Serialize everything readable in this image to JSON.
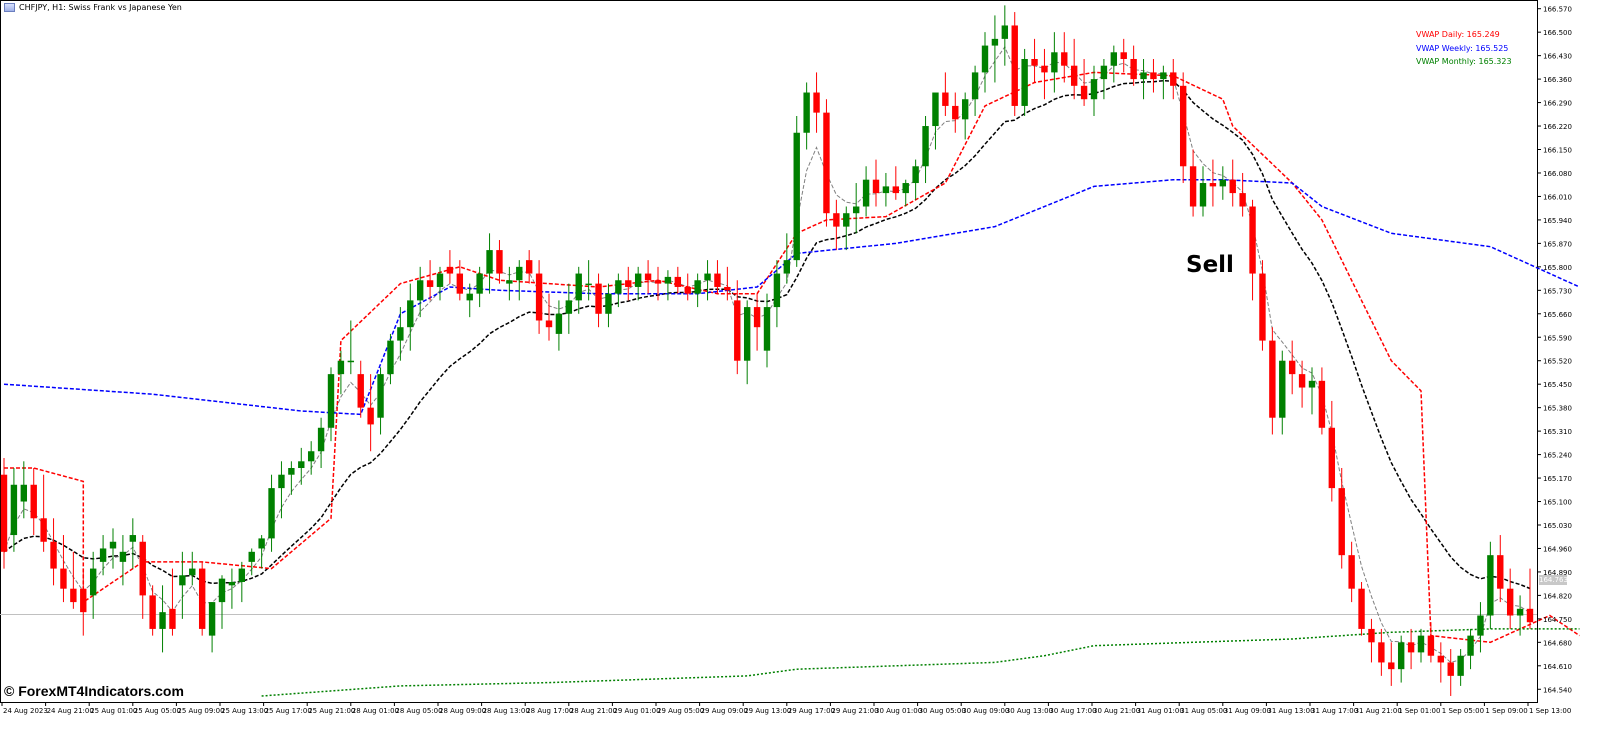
{
  "header": {
    "title": "CHFJPY, H1:  Swiss Frank vs Japanese Yen"
  },
  "legend": {
    "daily": "VWAP Daily: 165.249",
    "weekly": "VWAP Weekly: 165.525",
    "monthly": "VWAP Monthly: 165.323"
  },
  "annotation": {
    "sell": "Sell"
  },
  "watermark": "© ForexMT4Indicators.com",
  "current_price_label": "164.763",
  "colors": {
    "bull": "#008000",
    "bear": "#ff0000",
    "daily": "#ff0000",
    "weekly": "#0000ff",
    "monthly": "#008000",
    "black_ma": "#000000",
    "grey_ma": "#808080"
  },
  "chart_data": {
    "type": "candlestick",
    "symbol": "CHFJPY",
    "timeframe": "H1",
    "ylim": [
      164.505,
      166.59
    ],
    "y_ticks": [
      "166.570",
      "166.500",
      "166.430",
      "166.360",
      "166.290",
      "166.220",
      "166.150",
      "166.080",
      "166.010",
      "165.940",
      "165.870",
      "165.800",
      "165.730",
      "165.660",
      "165.590",
      "165.520",
      "165.450",
      "165.380",
      "165.310",
      "165.240",
      "165.170",
      "165.100",
      "165.030",
      "164.960",
      "164.890",
      "164.820",
      "164.750",
      "164.680",
      "164.610",
      "164.540"
    ],
    "x_ticks": [
      "24 Aug 2023",
      "24 Aug 21:00",
      "25 Aug 01:00",
      "25 Aug 05:00",
      "25 Aug 09:00",
      "25 Aug 13:00",
      "25 Aug 17:00",
      "25 Aug 21:00",
      "28 Aug 01:00",
      "28 Aug 05:00",
      "28 Aug 09:00",
      "28 Aug 13:00",
      "28 Aug 17:00",
      "28 Aug 21:00",
      "29 Aug 01:00",
      "29 Aug 05:00",
      "29 Aug 09:00",
      "29 Aug 13:00",
      "29 Aug 17:00",
      "29 Aug 21:00",
      "30 Aug 01:00",
      "30 Aug 05:00",
      "30 Aug 09:00",
      "30 Aug 13:00",
      "30 Aug 17:00",
      "30 Aug 21:00",
      "31 Aug 01:00",
      "31 Aug 05:00",
      "31 Aug 09:00",
      "31 Aug 13:00",
      "31 Aug 17:00",
      "31 Aug 21:00",
      "1 Sep 01:00",
      "1 Sep 05:00",
      "1 Sep 09:00",
      "1 Sep 13:00"
    ],
    "current_price": 164.763,
    "candles": [
      [
        165.18,
        165.23,
        164.9,
        164.95
      ],
      [
        165.0,
        165.2,
        164.95,
        165.15
      ],
      [
        165.1,
        165.22,
        165.05,
        165.15
      ],
      [
        165.15,
        165.2,
        165.0,
        165.05
      ],
      [
        165.05,
        165.18,
        164.95,
        164.98
      ],
      [
        164.98,
        165.05,
        164.85,
        164.9
      ],
      [
        164.9,
        165.0,
        164.8,
        164.84
      ],
      [
        164.84,
        164.95,
        164.78,
        164.8
      ],
      [
        164.84,
        164.9,
        164.7,
        164.77
      ],
      [
        164.82,
        164.95,
        164.75,
        164.9
      ],
      [
        164.92,
        165.0,
        164.88,
        164.96
      ],
      [
        164.96,
        165.02,
        164.9,
        164.98
      ],
      [
        164.92,
        165.0,
        164.85,
        164.95
      ],
      [
        164.98,
        165.05,
        164.9,
        165.0
      ],
      [
        164.98,
        165.0,
        164.75,
        164.82
      ],
      [
        164.82,
        164.85,
        164.7,
        164.72
      ],
      [
        164.72,
        164.85,
        164.65,
        164.77
      ],
      [
        164.78,
        164.9,
        164.7,
        164.72
      ],
      [
        164.85,
        164.95,
        164.75,
        164.88
      ],
      [
        164.88,
        164.95,
        164.85,
        164.9
      ],
      [
        164.9,
        164.92,
        164.7,
        164.72
      ],
      [
        164.7,
        164.8,
        164.65,
        164.8
      ],
      [
        164.8,
        164.88,
        164.72,
        164.87
      ],
      [
        164.85,
        164.9,
        164.78,
        164.86
      ],
      [
        164.86,
        164.92,
        164.8,
        164.9
      ],
      [
        164.92,
        164.96,
        164.88,
        164.95
      ],
      [
        164.96,
        165.0,
        164.9,
        164.99
      ],
      [
        164.99,
        165.18,
        164.95,
        165.14
      ],
      [
        165.14,
        165.22,
        165.05,
        165.18
      ],
      [
        165.18,
        165.22,
        165.12,
        165.2
      ],
      [
        165.2,
        165.26,
        165.15,
        165.22
      ],
      [
        165.22,
        165.28,
        165.18,
        165.25
      ],
      [
        165.25,
        165.35,
        165.2,
        165.32
      ],
      [
        165.32,
        165.5,
        165.28,
        165.48
      ],
      [
        165.48,
        165.55,
        165.42,
        165.52
      ],
      [
        165.52,
        165.64,
        165.48,
        165.52
      ],
      [
        165.48,
        165.52,
        165.35,
        165.38
      ],
      [
        165.38,
        165.48,
        165.25,
        165.33
      ],
      [
        165.35,
        165.5,
        165.3,
        165.48
      ],
      [
        165.48,
        165.6,
        165.45,
        165.58
      ],
      [
        165.58,
        165.68,
        165.52,
        165.62
      ],
      [
        165.62,
        165.75,
        165.55,
        165.7
      ],
      [
        165.7,
        165.8,
        165.65,
        165.76
      ],
      [
        165.76,
        165.82,
        165.7,
        165.74
      ],
      [
        165.74,
        165.8,
        165.7,
        165.78
      ],
      [
        165.8,
        165.85,
        165.75,
        165.78
      ],
      [
        165.78,
        165.82,
        165.7,
        165.72
      ],
      [
        165.7,
        165.75,
        165.65,
        165.72
      ],
      [
        165.72,
        165.8,
        165.68,
        165.78
      ],
      [
        165.78,
        165.9,
        165.72,
        165.85
      ],
      [
        165.85,
        165.88,
        165.75,
        165.78
      ],
      [
        165.75,
        165.8,
        165.7,
        165.76
      ],
      [
        165.76,
        165.82,
        165.7,
        165.8
      ],
      [
        165.82,
        165.85,
        165.75,
        165.78
      ],
      [
        165.78,
        165.82,
        165.6,
        165.64
      ],
      [
        165.64,
        165.72,
        165.58,
        165.62
      ],
      [
        165.6,
        165.7,
        165.55,
        165.66
      ],
      [
        165.66,
        165.75,
        165.6,
        165.7
      ],
      [
        165.7,
        165.8,
        165.66,
        165.78
      ],
      [
        165.75,
        165.82,
        165.7,
        165.75
      ],
      [
        165.75,
        165.78,
        165.62,
        165.66
      ],
      [
        165.66,
        165.75,
        165.62,
        165.72
      ],
      [
        165.72,
        165.78,
        165.68,
        165.76
      ],
      [
        165.76,
        165.8,
        165.7,
        165.74
      ],
      [
        165.74,
        165.8,
        165.7,
        165.78
      ],
      [
        165.78,
        165.82,
        165.72,
        165.76
      ],
      [
        165.76,
        165.8,
        165.7,
        165.75
      ],
      [
        165.75,
        165.79,
        165.7,
        165.77
      ],
      [
        165.77,
        165.8,
        165.72,
        165.74
      ],
      [
        165.74,
        165.78,
        165.7,
        165.72
      ],
      [
        165.72,
        165.78,
        165.68,
        165.76
      ],
      [
        165.76,
        165.82,
        165.7,
        165.78
      ],
      [
        165.78,
        165.82,
        165.72,
        165.74
      ],
      [
        165.74,
        165.8,
        165.7,
        165.73
      ],
      [
        165.7,
        165.76,
        165.48,
        165.52
      ],
      [
        165.52,
        165.7,
        165.45,
        165.68
      ],
      [
        165.68,
        165.72,
        165.55,
        165.62
      ],
      [
        165.55,
        165.72,
        165.5,
        165.68
      ],
      [
        165.68,
        165.82,
        165.62,
        165.78
      ],
      [
        165.78,
        165.9,
        165.75,
        165.82
      ],
      [
        165.82,
        166.25,
        165.8,
        166.2
      ],
      [
        166.2,
        166.35,
        166.15,
        166.32
      ],
      [
        166.32,
        166.38,
        166.2,
        166.26
      ],
      [
        166.26,
        166.3,
        165.92,
        165.96
      ],
      [
        165.96,
        166.0,
        165.85,
        165.92
      ],
      [
        165.92,
        165.98,
        165.85,
        165.96
      ],
      [
        165.96,
        166.05,
        165.9,
        165.98
      ],
      [
        165.98,
        166.1,
        165.95,
        166.06
      ],
      [
        166.06,
        166.12,
        165.98,
        166.02
      ],
      [
        166.02,
        166.08,
        165.98,
        166.04
      ],
      [
        166.04,
        166.1,
        166.0,
        166.02
      ],
      [
        166.02,
        166.06,
        165.98,
        166.05
      ],
      [
        166.05,
        166.12,
        166.0,
        166.1
      ],
      [
        166.1,
        166.25,
        166.05,
        166.22
      ],
      [
        166.22,
        166.3,
        166.15,
        166.32
      ],
      [
        166.32,
        166.38,
        166.25,
        166.28
      ],
      [
        166.28,
        166.32,
        166.2,
        166.24
      ],
      [
        166.24,
        166.32,
        166.18,
        166.3
      ],
      [
        166.3,
        166.4,
        166.25,
        166.38
      ],
      [
        166.38,
        166.5,
        166.32,
        166.46
      ],
      [
        166.46,
        166.55,
        166.35,
        166.48
      ],
      [
        166.48,
        166.58,
        166.4,
        166.52
      ],
      [
        166.52,
        166.56,
        166.25,
        166.28
      ],
      [
        166.28,
        166.45,
        166.25,
        166.42
      ],
      [
        166.42,
        166.48,
        166.35,
        166.4
      ],
      [
        166.4,
        166.45,
        166.3,
        166.38
      ],
      [
        166.38,
        166.5,
        166.32,
        166.44
      ],
      [
        166.44,
        166.5,
        166.35,
        166.4
      ],
      [
        166.4,
        166.48,
        166.3,
        166.34
      ],
      [
        166.34,
        166.42,
        166.28,
        166.3
      ],
      [
        166.3,
        166.4,
        166.25,
        166.36
      ],
      [
        166.36,
        166.42,
        166.3,
        166.4
      ],
      [
        166.4,
        166.46,
        166.35,
        166.44
      ],
      [
        166.44,
        166.48,
        166.38,
        166.42
      ],
      [
        166.42,
        166.46,
        166.34,
        166.36
      ],
      [
        166.36,
        166.42,
        166.3,
        166.38
      ],
      [
        166.38,
        166.42,
        166.32,
        166.36
      ],
      [
        166.36,
        166.4,
        166.3,
        166.38
      ],
      [
        166.38,
        166.42,
        166.3,
        166.34
      ],
      [
        166.34,
        166.38,
        166.05,
        166.1
      ],
      [
        166.1,
        166.15,
        165.95,
        165.98
      ],
      [
        165.98,
        166.1,
        165.95,
        166.05
      ],
      [
        166.05,
        166.12,
        165.98,
        166.04
      ],
      [
        166.04,
        166.1,
        166.0,
        166.06
      ],
      [
        166.06,
        166.12,
        165.98,
        166.02
      ],
      [
        166.02,
        166.08,
        165.95,
        165.98
      ],
      [
        165.98,
        166.0,
        165.7,
        165.78
      ],
      [
        165.78,
        165.82,
        165.55,
        165.58
      ],
      [
        165.58,
        165.62,
        165.3,
        165.35
      ],
      [
        165.35,
        165.55,
        165.3,
        165.52
      ],
      [
        165.52,
        165.58,
        165.42,
        165.48
      ],
      [
        165.48,
        165.52,
        165.38,
        165.44
      ],
      [
        165.44,
        165.5,
        165.36,
        165.46
      ],
      [
        165.46,
        165.5,
        165.3,
        165.32
      ],
      [
        165.32,
        165.4,
        165.1,
        165.14
      ],
      [
        165.14,
        165.2,
        164.9,
        164.94
      ],
      [
        164.94,
        164.98,
        164.8,
        164.84
      ],
      [
        164.84,
        164.86,
        164.7,
        164.72
      ],
      [
        164.72,
        164.75,
        164.62,
        164.68
      ],
      [
        164.68,
        164.72,
        164.58,
        164.62
      ],
      [
        164.62,
        164.68,
        164.55,
        164.6
      ],
      [
        164.6,
        164.7,
        164.56,
        164.68
      ],
      [
        164.68,
        164.72,
        164.6,
        164.65
      ],
      [
        164.65,
        164.72,
        164.62,
        164.7
      ],
      [
        164.7,
        164.74,
        164.62,
        164.64
      ],
      [
        164.64,
        164.68,
        164.56,
        164.62
      ],
      [
        164.62,
        164.66,
        164.52,
        164.58
      ],
      [
        164.58,
        164.66,
        164.55,
        164.64
      ],
      [
        164.64,
        164.72,
        164.6,
        164.7
      ],
      [
        164.7,
        164.8,
        164.65,
        164.76
      ],
      [
        164.76,
        164.98,
        164.72,
        164.94
      ],
      [
        164.94,
        165.0,
        164.8,
        164.84
      ],
      [
        164.84,
        164.9,
        164.72,
        164.76
      ],
      [
        164.76,
        164.82,
        164.7,
        164.78
      ],
      [
        164.78,
        164.9,
        164.72,
        164.74
      ]
    ],
    "series": [
      {
        "name": "VWAP Daily",
        "style": "dashed",
        "color": "#ff0000",
        "points": [
          [
            0,
            165.2
          ],
          [
            3,
            165.2
          ],
          [
            8,
            165.16
          ],
          [
            8,
            164.8
          ],
          [
            14,
            164.92
          ],
          [
            20,
            164.92
          ],
          [
            27,
            164.9
          ],
          [
            33,
            165.05
          ],
          [
            34,
            165.58
          ],
          [
            40,
            165.75
          ],
          [
            46,
            165.8
          ],
          [
            50,
            165.76
          ],
          [
            60,
            165.74
          ],
          [
            66,
            165.76
          ],
          [
            72,
            165.72
          ],
          [
            76,
            165.72
          ],
          [
            80,
            165.9
          ],
          [
            83,
            165.94
          ],
          [
            89,
            165.95
          ],
          [
            95,
            166.05
          ],
          [
            99,
            166.28
          ],
          [
            104,
            166.35
          ],
          [
            110,
            166.38
          ],
          [
            118,
            166.37
          ],
          [
            123,
            166.3
          ],
          [
            124,
            166.22
          ],
          [
            130,
            166.05
          ],
          [
            133,
            165.94
          ],
          [
            137,
            165.7
          ],
          [
            140,
            165.52
          ],
          [
            143,
            165.43
          ],
          [
            144,
            164.7
          ],
          [
            150,
            164.68
          ],
          [
            156,
            164.76
          ],
          [
            159,
            164.7
          ]
        ]
      },
      {
        "name": "VWAP Weekly",
        "style": "dashed",
        "color": "#0000ff",
        "points": [
          [
            0,
            165.45
          ],
          [
            15,
            165.42
          ],
          [
            30,
            165.37
          ],
          [
            36,
            165.36
          ],
          [
            40,
            165.66
          ],
          [
            45,
            165.74
          ],
          [
            50,
            165.73
          ],
          [
            60,
            165.72
          ],
          [
            70,
            165.72
          ],
          [
            76,
            165.74
          ],
          [
            80,
            165.84
          ],
          [
            90,
            165.87
          ],
          [
            100,
            165.92
          ],
          [
            110,
            166.04
          ],
          [
            118,
            166.06
          ],
          [
            123,
            166.06
          ],
          [
            130,
            166.05
          ],
          [
            133,
            165.98
          ],
          [
            140,
            165.9
          ],
          [
            150,
            165.86
          ],
          [
            159,
            165.74
          ]
        ]
      },
      {
        "name": "VWAP Monthly",
        "style": "dotted",
        "color": "#008000",
        "points": [
          [
            26,
            164.52
          ],
          [
            40,
            164.55
          ],
          [
            55,
            164.56
          ],
          [
            75,
            164.58
          ],
          [
            80,
            164.6
          ],
          [
            90,
            164.61
          ],
          [
            100,
            164.62
          ],
          [
            105,
            164.64
          ],
          [
            110,
            164.67
          ],
          [
            120,
            164.68
          ],
          [
            130,
            164.69
          ],
          [
            140,
            164.71
          ],
          [
            150,
            164.72
          ],
          [
            159,
            164.72
          ]
        ]
      }
    ]
  }
}
